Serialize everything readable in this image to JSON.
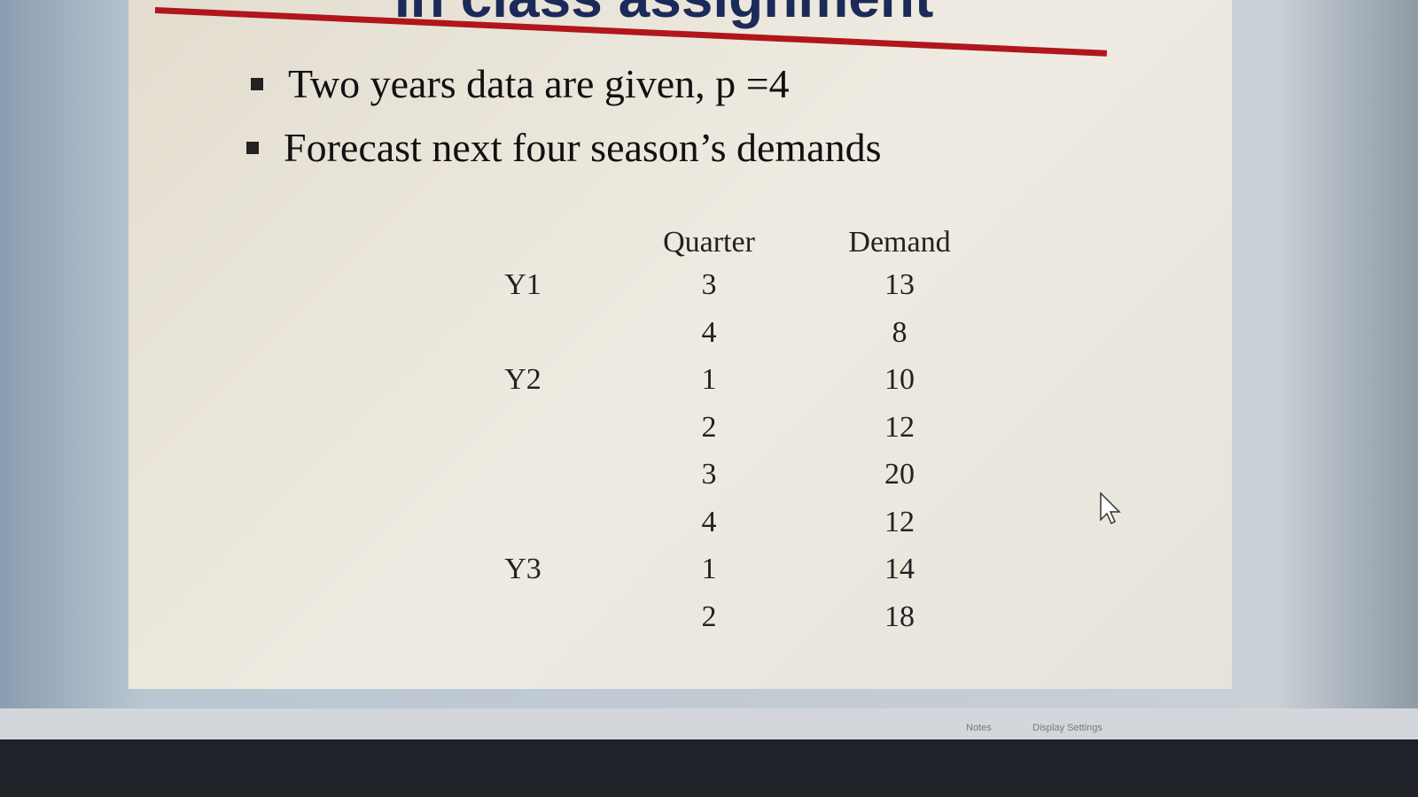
{
  "slide": {
    "title": "In class assignment",
    "bullets": [
      "Two years data are given, p =4",
      "Forecast next four season’s demands"
    ],
    "table": {
      "headers": [
        "Quarter",
        "Demand"
      ],
      "rows": [
        {
          "year": "Y1",
          "quarter": 3,
          "demand": 13
        },
        {
          "year": null,
          "quarter": 4,
          "demand": 8
        },
        {
          "year": "Y2",
          "quarter": 1,
          "demand": 10
        },
        {
          "year": null,
          "quarter": 2,
          "demand": 12
        },
        {
          "year": null,
          "quarter": 3,
          "demand": 20
        },
        {
          "year": null,
          "quarter": 4,
          "demand": 12
        },
        {
          "year": "Y3",
          "quarter": 1,
          "demand": 14
        },
        {
          "year": null,
          "quarter": 2,
          "demand": 18
        }
      ]
    }
  },
  "status_bar": {
    "notes": "Notes",
    "display_settings": "Display Settings"
  }
}
